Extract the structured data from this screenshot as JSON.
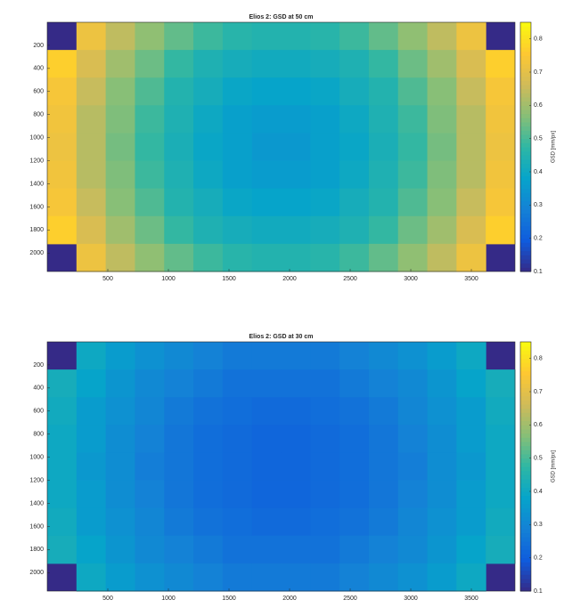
{
  "chart_data": [
    {
      "type": "heatmap",
      "title": "Elios 2: GSD at 50 cm",
      "xlim": [
        0,
        3860
      ],
      "ylim": [
        0,
        2160
      ],
      "y_direction": "reverse",
      "xticks": [
        500,
        1000,
        1500,
        2000,
        2500,
        3000,
        3500
      ],
      "yticks": [
        200,
        400,
        600,
        800,
        1000,
        1200,
        1400,
        1600,
        1800,
        2000
      ],
      "clim": [
        0.1,
        0.85
      ],
      "cticks": [
        0.1,
        0.2,
        0.3,
        0.4,
        0.5,
        0.6,
        0.7,
        0.8
      ],
      "colorbar_label": "GSD [mm/px]",
      "colormap": "parula",
      "values": [
        [
          null,
          0.72,
          0.64,
          0.58,
          0.53,
          0.49,
          0.46,
          0.45,
          0.45,
          0.46,
          0.49,
          0.53,
          0.58,
          0.64,
          0.72,
          null
        ],
        [
          0.77,
          0.68,
          0.6,
          0.54,
          0.48,
          0.44,
          0.42,
          0.41,
          0.41,
          0.42,
          0.44,
          0.48,
          0.54,
          0.6,
          0.68,
          0.77
        ],
        [
          0.74,
          0.65,
          0.57,
          0.51,
          0.45,
          0.42,
          0.39,
          0.38,
          0.38,
          0.39,
          0.42,
          0.45,
          0.51,
          0.57,
          0.65,
          0.74
        ],
        [
          0.73,
          0.63,
          0.56,
          0.49,
          0.44,
          0.4,
          0.37,
          0.36,
          0.36,
          0.37,
          0.4,
          0.44,
          0.49,
          0.56,
          0.63,
          0.73
        ],
        [
          0.72,
          0.63,
          0.55,
          0.48,
          0.43,
          0.39,
          0.37,
          0.35,
          0.35,
          0.37,
          0.39,
          0.43,
          0.48,
          0.55,
          0.63,
          0.72
        ],
        [
          0.73,
          0.63,
          0.56,
          0.49,
          0.44,
          0.4,
          0.37,
          0.36,
          0.36,
          0.37,
          0.4,
          0.44,
          0.49,
          0.56,
          0.63,
          0.73
        ],
        [
          0.74,
          0.65,
          0.57,
          0.51,
          0.45,
          0.42,
          0.39,
          0.38,
          0.38,
          0.39,
          0.42,
          0.45,
          0.51,
          0.57,
          0.65,
          0.74
        ],
        [
          0.77,
          0.68,
          0.6,
          0.54,
          0.48,
          0.44,
          0.42,
          0.41,
          0.41,
          0.42,
          0.44,
          0.48,
          0.54,
          0.6,
          0.68,
          0.77
        ],
        [
          null,
          0.72,
          0.64,
          0.58,
          0.53,
          0.49,
          0.46,
          0.45,
          0.45,
          0.46,
          0.49,
          0.53,
          0.58,
          0.64,
          0.72,
          null
        ]
      ]
    },
    {
      "type": "heatmap",
      "title": "Elios 2: GSD at 30 cm",
      "xlim": [
        0,
        3860
      ],
      "ylim": [
        0,
        2160
      ],
      "y_direction": "reverse",
      "xticks": [
        500,
        1000,
        1500,
        2000,
        2500,
        3000,
        3500
      ],
      "yticks": [
        200,
        400,
        600,
        800,
        1000,
        1200,
        1400,
        1600,
        1800,
        2000
      ],
      "clim": [
        0.1,
        0.85
      ],
      "cticks": [
        0.1,
        0.2,
        0.3,
        0.4,
        0.5,
        0.6,
        0.7,
        0.8
      ],
      "colorbar_label": "GSD [mm/px]",
      "colormap": "parula",
      "values": [
        [
          null,
          0.4,
          0.36,
          0.33,
          0.31,
          0.29,
          0.27,
          0.27,
          0.27,
          0.27,
          0.29,
          0.31,
          0.33,
          0.36,
          0.4,
          null
        ],
        [
          0.42,
          0.38,
          0.34,
          0.31,
          0.29,
          0.27,
          0.25,
          0.25,
          0.25,
          0.25,
          0.27,
          0.29,
          0.31,
          0.34,
          0.38,
          0.42
        ],
        [
          0.41,
          0.36,
          0.33,
          0.3,
          0.27,
          0.25,
          0.24,
          0.23,
          0.23,
          0.24,
          0.25,
          0.27,
          0.3,
          0.33,
          0.36,
          0.41
        ],
        [
          0.4,
          0.36,
          0.32,
          0.29,
          0.26,
          0.24,
          0.23,
          0.22,
          0.22,
          0.23,
          0.24,
          0.26,
          0.29,
          0.32,
          0.36,
          0.4
        ],
        [
          0.4,
          0.35,
          0.32,
          0.28,
          0.26,
          0.24,
          0.23,
          0.22,
          0.22,
          0.23,
          0.24,
          0.26,
          0.28,
          0.32,
          0.35,
          0.4
        ],
        [
          0.4,
          0.36,
          0.32,
          0.29,
          0.26,
          0.24,
          0.23,
          0.22,
          0.22,
          0.23,
          0.24,
          0.26,
          0.29,
          0.32,
          0.36,
          0.4
        ],
        [
          0.41,
          0.36,
          0.33,
          0.3,
          0.27,
          0.25,
          0.24,
          0.23,
          0.23,
          0.24,
          0.25,
          0.27,
          0.3,
          0.33,
          0.36,
          0.41
        ],
        [
          0.42,
          0.38,
          0.34,
          0.31,
          0.29,
          0.27,
          0.25,
          0.25,
          0.25,
          0.25,
          0.27,
          0.29,
          0.31,
          0.34,
          0.38,
          0.42
        ],
        [
          null,
          0.4,
          0.36,
          0.33,
          0.31,
          0.29,
          0.27,
          0.27,
          0.27,
          0.27,
          0.29,
          0.31,
          0.33,
          0.36,
          0.4,
          null
        ]
      ]
    }
  ]
}
